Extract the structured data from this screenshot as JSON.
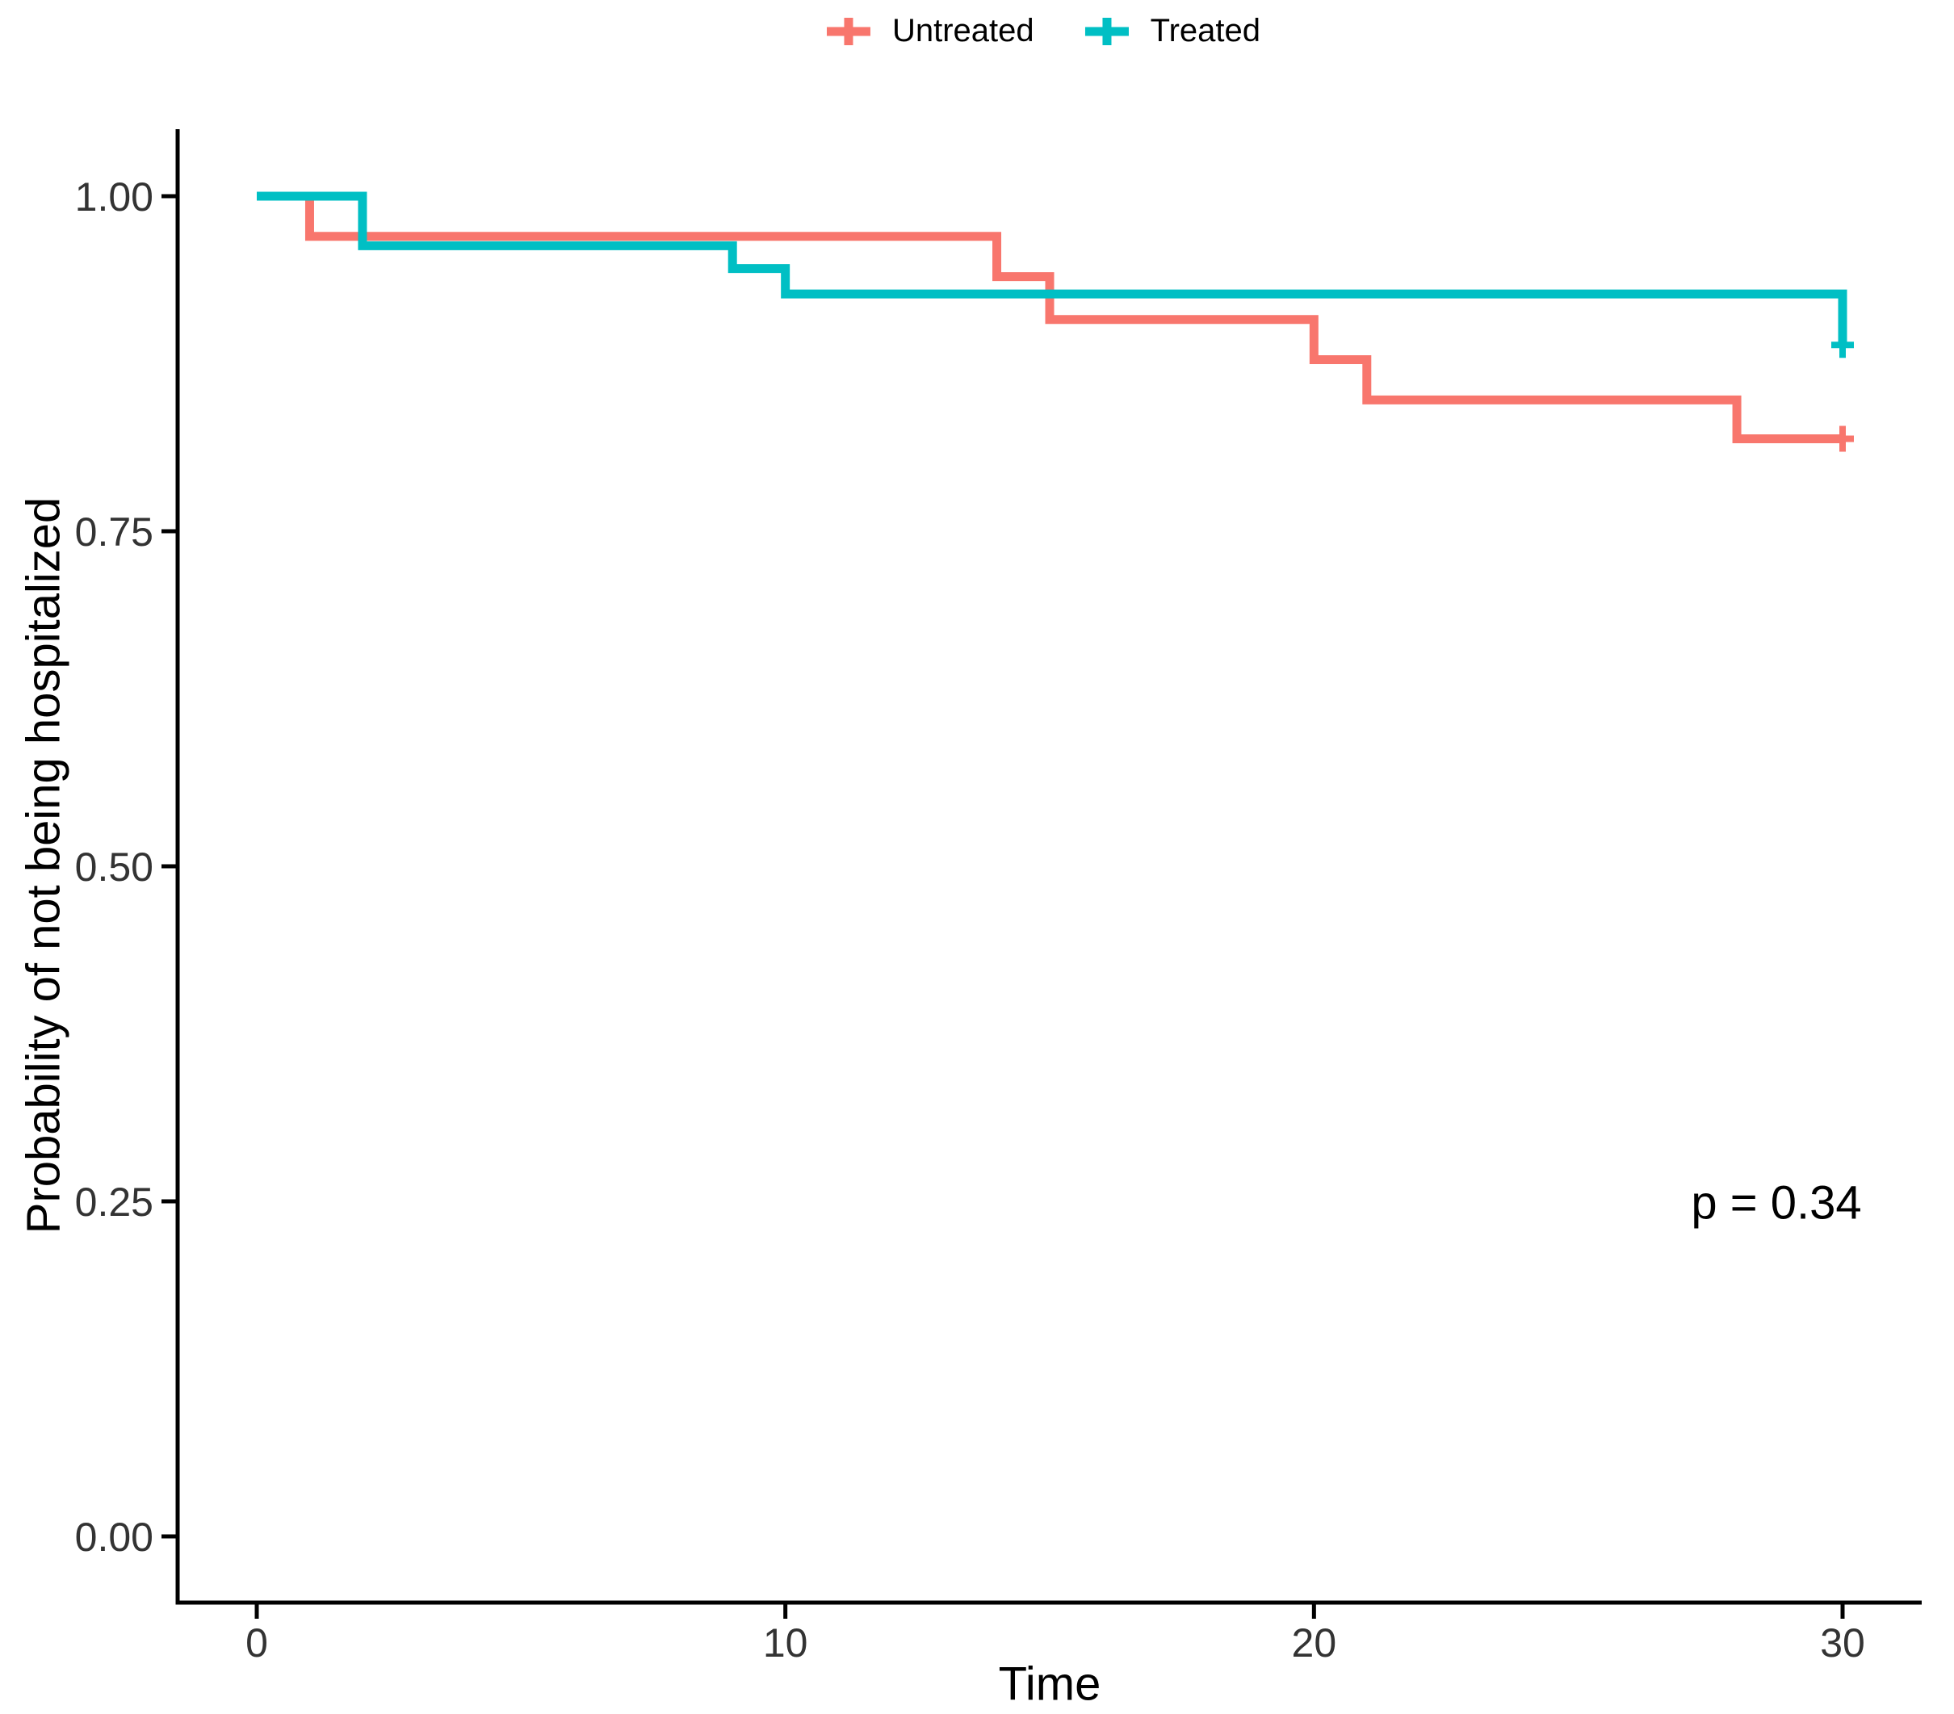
{
  "chart_data": {
    "type": "line",
    "variant": "kaplan-meier-step",
    "title": "",
    "xlabel": "Time",
    "ylabel": "Probability of not being hospitalized",
    "xlim": [
      0,
      30
    ],
    "ylim": [
      0.0,
      1.0
    ],
    "grid": false,
    "legend_position": "top-center",
    "axis_color": "#000000",
    "x_ticks": [
      {
        "v": 0,
        "label": "0"
      },
      {
        "v": 10,
        "label": "10"
      },
      {
        "v": 20,
        "label": "20"
      },
      {
        "v": 30,
        "label": "30"
      }
    ],
    "y_ticks": [
      {
        "v": 0.0,
        "label": "0.00"
      },
      {
        "v": 0.25,
        "label": "0.25"
      },
      {
        "v": 0.5,
        "label": "0.50"
      },
      {
        "v": 0.75,
        "label": "0.75"
      },
      {
        "v": 1.0,
        "label": "1.00"
      }
    ],
    "annotation": {
      "text": "p = 0.34",
      "x": 28.7,
      "y": 0.25
    },
    "series": [
      {
        "name": "Untreated",
        "color": "#F8766D",
        "steps": [
          [
            0,
            1.0
          ],
          [
            1,
            0.97
          ],
          [
            14,
            0.94
          ],
          [
            15,
            0.908
          ],
          [
            20,
            0.878
          ],
          [
            21,
            0.848
          ],
          [
            28,
            0.819
          ],
          [
            30,
            0.819
          ]
        ],
        "censor_marks": [
          [
            30,
            0.819
          ]
        ]
      },
      {
        "name": "Treated",
        "color": "#00BFC4",
        "steps": [
          [
            0,
            1.0
          ],
          [
            2,
            0.963
          ],
          [
            9,
            0.946
          ],
          [
            10,
            0.927
          ],
          [
            30,
            0.889
          ]
        ],
        "censor_marks": [
          [
            30,
            0.889
          ]
        ]
      }
    ]
  }
}
